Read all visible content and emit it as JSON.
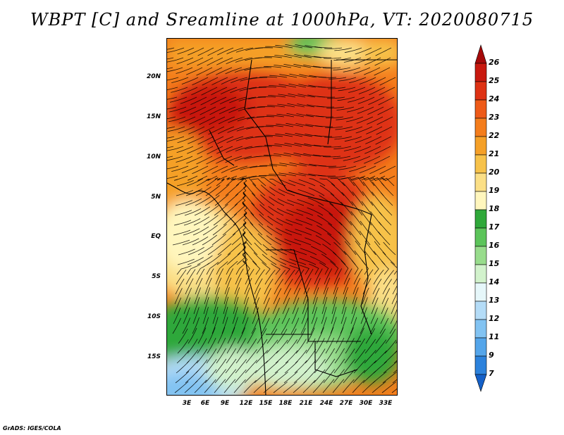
{
  "title": "WBPT [C] and Sreamline at 1000hPa, VT: 2020080715",
  "credit": "GrADS: IGES/COLA",
  "lat_labels": [
    "20N",
    "15N",
    "10N",
    "5N",
    "EQ",
    "5S",
    "10S",
    "15S"
  ],
  "lon_labels": [
    "3E",
    "6E",
    "9E",
    "12E",
    "15E",
    "18E",
    "21E",
    "24E",
    "27E",
    "30E",
    "33E"
  ],
  "colorbar": {
    "labels": [
      "26",
      "25",
      "24",
      "23",
      "22",
      "21",
      "20",
      "19",
      "18",
      "17",
      "16",
      "15",
      "14",
      "13",
      "12",
      "11",
      "9",
      "7"
    ],
    "colors": [
      "#a50a0a",
      "#c8190f",
      "#de3214",
      "#ee5a18",
      "#f47d1c",
      "#f5a028",
      "#f7c24a",
      "#fbdf86",
      "#fff6bd",
      "#2fa83a",
      "#5cc45a",
      "#98dc8c",
      "#d2f2cc",
      "#e6f7fa",
      "#b4dcf7",
      "#82c3f2",
      "#54a5ea",
      "#2c82dc",
      "#1460c8"
    ]
  }
}
